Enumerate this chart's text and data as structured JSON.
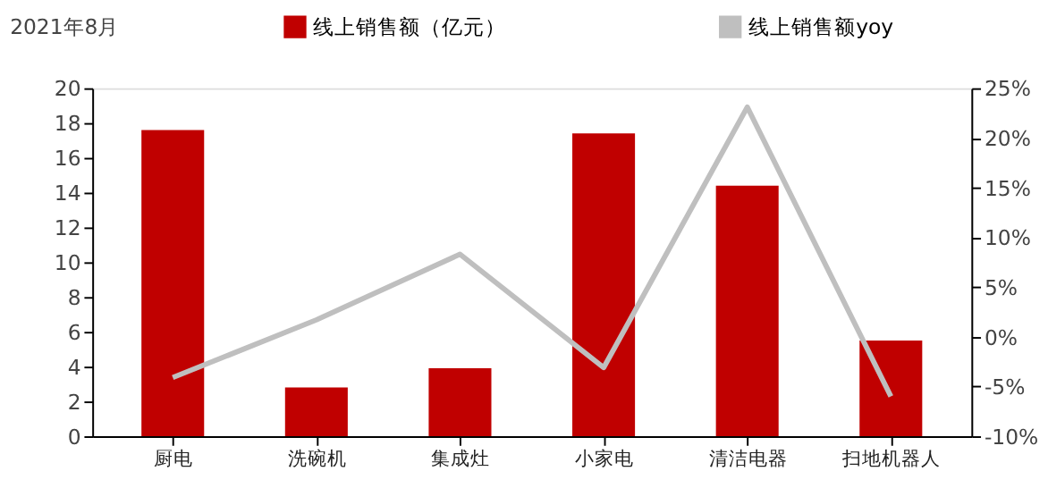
{
  "chart_data": {
    "type": "bar",
    "title": "2021年8月",
    "categories": [
      "厨电",
      "洗碗机",
      "集成灶",
      "小家电",
      "清洁电器",
      "扫地机器人"
    ],
    "series": [
      {
        "name": "线上销售额（亿元）",
        "color": "#c00000",
        "values": [
          17.6,
          2.8,
          3.9,
          17.4,
          14.4,
          5.5
        ]
      },
      {
        "name": "线上销售额yoy",
        "type": "line",
        "axis": "y2",
        "color": "#bfbfbf",
        "values": [
          -4.1,
          1.7,
          8.3,
          -3.1,
          23.1,
          -6.0
        ]
      }
    ],
    "ylim": [
      0,
      20
    ],
    "yticks": [
      0,
      2,
      4,
      6,
      8,
      10,
      12,
      14,
      16,
      18,
      20
    ],
    "y2lim": [
      -10,
      25
    ],
    "y2ticks": [
      {
        "value": -10,
        "label": "-10%"
      },
      {
        "value": -5,
        "label": "-5%"
      },
      {
        "value": 0,
        "label": "0%"
      },
      {
        "value": 5,
        "label": "5%"
      },
      {
        "value": 10,
        "label": "10%"
      },
      {
        "value": 15,
        "label": "15%"
      },
      {
        "value": 20,
        "label": "20%"
      },
      {
        "value": 25,
        "label": "25%"
      }
    ],
    "grid": false,
    "legend": "top",
    "marker": "none",
    "line_style": "solid"
  }
}
